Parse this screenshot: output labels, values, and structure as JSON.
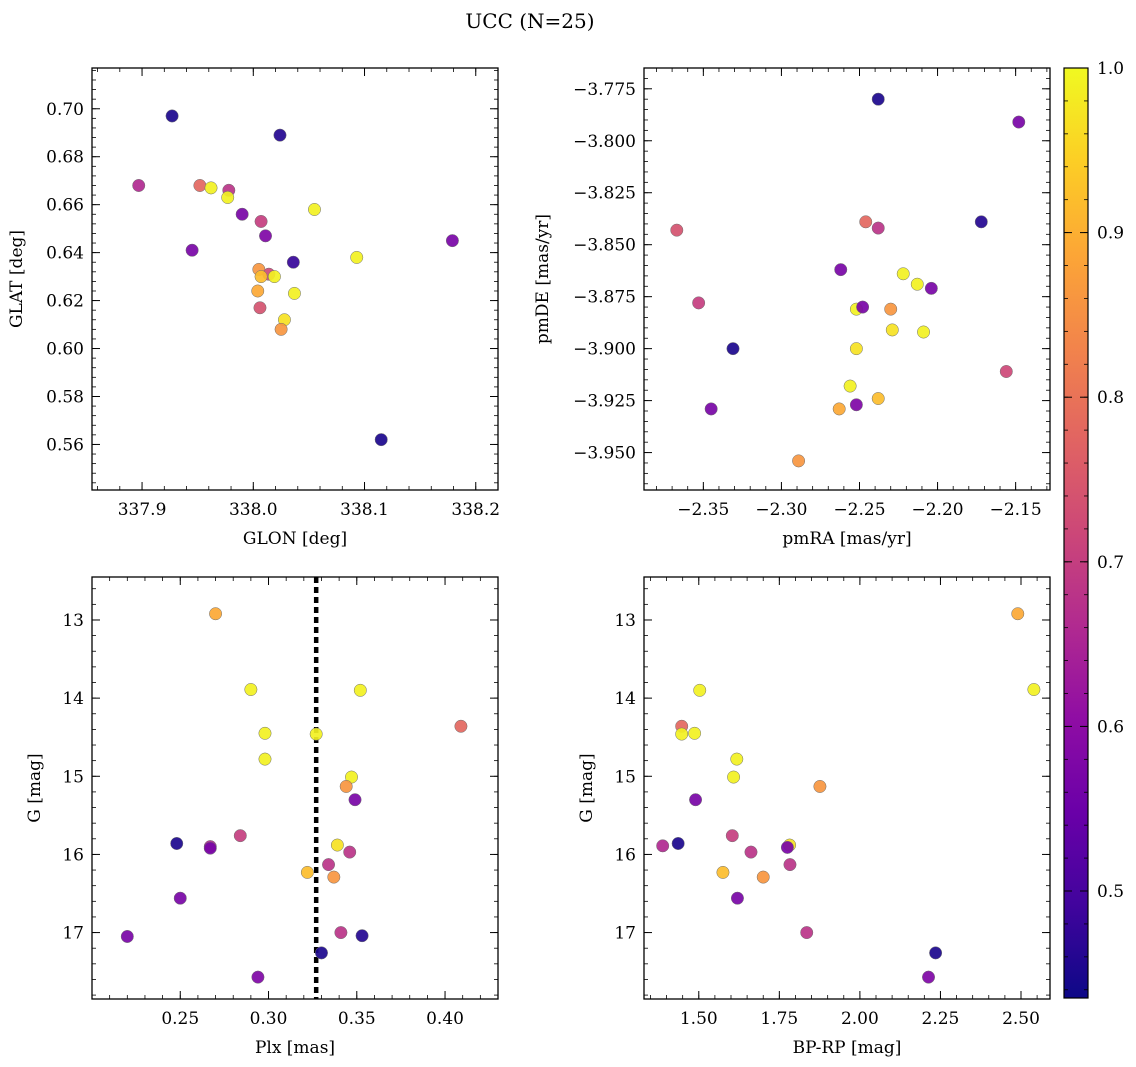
{
  "figure": {
    "title": "UCC (N=25)"
  },
  "colorbar": {
    "range": [
      0.435,
      1.0
    ],
    "ticks": [
      0.5,
      0.6,
      0.7,
      0.8,
      0.9,
      1.0
    ],
    "tick_labels": [
      "0.5",
      "0.6",
      "0.7",
      "0.8",
      "0.9",
      "1.0"
    ],
    "colormap": "plasma"
  },
  "chart_data": [
    {
      "type": "scatter",
      "xlabel": "GLON [deg]",
      "ylabel": "GLAT [deg]",
      "xlim": [
        337.855,
        338.22
      ],
      "ylim": [
        0.541,
        0.717
      ],
      "xticks": [
        337.9,
        338.0,
        338.1,
        338.2
      ],
      "xtick_labels": [
        "337.9",
        "338.0",
        "338.1",
        "338.2"
      ],
      "yticks": [
        0.56,
        0.58,
        0.6,
        0.62,
        0.64,
        0.66,
        0.68,
        0.7
      ],
      "ytick_labels": [
        "0.56",
        "0.58",
        "0.60",
        "0.62",
        "0.64",
        "0.66",
        "0.68",
        "0.70"
      ],
      "y_inverted": false,
      "points": [
        {
          "x": 337.927,
          "y": 0.697,
          "c": 0.45
        },
        {
          "x": 338.024,
          "y": 0.689,
          "c": 0.46
        },
        {
          "x": 337.897,
          "y": 0.668,
          "c": 0.66
        },
        {
          "x": 337.952,
          "y": 0.668,
          "c": 0.78
        },
        {
          "x": 337.962,
          "y": 0.667,
          "c": 0.99
        },
        {
          "x": 337.978,
          "y": 0.666,
          "c": 0.68
        },
        {
          "x": 337.977,
          "y": 0.663,
          "c": 0.99
        },
        {
          "x": 338.055,
          "y": 0.658,
          "c": 0.99
        },
        {
          "x": 337.99,
          "y": 0.656,
          "c": 0.57
        },
        {
          "x": 338.007,
          "y": 0.653,
          "c": 0.7
        },
        {
          "x": 338.011,
          "y": 0.647,
          "c": 0.58
        },
        {
          "x": 338.179,
          "y": 0.645,
          "c": 0.57
        },
        {
          "x": 337.945,
          "y": 0.641,
          "c": 0.57
        },
        {
          "x": 338.093,
          "y": 0.638,
          "c": 0.99
        },
        {
          "x": 338.036,
          "y": 0.636,
          "c": 0.48
        },
        {
          "x": 338.005,
          "y": 0.633,
          "c": 0.86
        },
        {
          "x": 338.014,
          "y": 0.631,
          "c": 0.72
        },
        {
          "x": 338.007,
          "y": 0.63,
          "c": 0.92
        },
        {
          "x": 338.019,
          "y": 0.63,
          "c": 0.99
        },
        {
          "x": 338.037,
          "y": 0.623,
          "c": 0.99
        },
        {
          "x": 338.004,
          "y": 0.624,
          "c": 0.89
        },
        {
          "x": 338.006,
          "y": 0.617,
          "c": 0.74
        },
        {
          "x": 338.028,
          "y": 0.612,
          "c": 0.97
        },
        {
          "x": 338.025,
          "y": 0.608,
          "c": 0.86
        },
        {
          "x": 338.115,
          "y": 0.562,
          "c": 0.45
        }
      ]
    },
    {
      "type": "scatter",
      "xlabel": "pmRA [mas/yr]",
      "ylabel": "pmDE [mas/yr]",
      "xlim": [
        -2.388,
        -2.128
      ],
      "ylim": [
        -3.968,
        -3.765
      ],
      "xticks": [
        -2.35,
        -2.3,
        -2.25,
        -2.2,
        -2.15
      ],
      "xtick_labels": [
        "−2.35",
        "−2.30",
        "−2.25",
        "−2.20",
        "−2.15"
      ],
      "yticks": [
        -3.95,
        -3.925,
        -3.9,
        -3.875,
        -3.85,
        -3.825,
        -3.8,
        -3.775
      ],
      "ytick_labels": [
        "−3.950",
        "−3.925",
        "−3.900",
        "−3.875",
        "−3.850",
        "−3.825",
        "−3.800",
        "−3.775"
      ],
      "y_inverted": false,
      "points": [
        {
          "x": -2.238,
          "y": -3.78,
          "c": 0.45
        },
        {
          "x": -2.148,
          "y": -3.791,
          "c": 0.57
        },
        {
          "x": -2.367,
          "y": -3.843,
          "c": 0.74
        },
        {
          "x": -2.246,
          "y": -3.839,
          "c": 0.78
        },
        {
          "x": -2.238,
          "y": -3.842,
          "c": 0.68
        },
        {
          "x": -2.172,
          "y": -3.839,
          "c": 0.46
        },
        {
          "x": -2.262,
          "y": -3.862,
          "c": 0.57
        },
        {
          "x": -2.222,
          "y": -3.864,
          "c": 0.99
        },
        {
          "x": -2.213,
          "y": -3.869,
          "c": 0.99
        },
        {
          "x": -2.204,
          "y": -3.871,
          "c": 0.57
        },
        {
          "x": -2.353,
          "y": -3.878,
          "c": 0.7
        },
        {
          "x": -2.252,
          "y": -3.881,
          "c": 0.99
        },
        {
          "x": -2.248,
          "y": -3.88,
          "c": 0.57
        },
        {
          "x": -2.23,
          "y": -3.881,
          "c": 0.86
        },
        {
          "x": -2.229,
          "y": -3.891,
          "c": 0.97
        },
        {
          "x": -2.209,
          "y": -3.892,
          "c": 0.99
        },
        {
          "x": -2.331,
          "y": -3.9,
          "c": 0.45
        },
        {
          "x": -2.252,
          "y": -3.9,
          "c": 0.97
        },
        {
          "x": -2.156,
          "y": -3.911,
          "c": 0.72
        },
        {
          "x": -2.256,
          "y": -3.918,
          "c": 0.99
        },
        {
          "x": -2.238,
          "y": -3.924,
          "c": 0.92
        },
        {
          "x": -2.252,
          "y": -3.927,
          "c": 0.58
        },
        {
          "x": -2.263,
          "y": -3.929,
          "c": 0.89
        },
        {
          "x": -2.345,
          "y": -3.929,
          "c": 0.57
        },
        {
          "x": -2.289,
          "y": -3.954,
          "c": 0.86
        }
      ]
    },
    {
      "type": "scatter",
      "xlabel": "Plx [mas]",
      "ylabel": "G [mag]",
      "xlim": [
        0.2,
        0.43
      ],
      "ylim": [
        12.45,
        17.85
      ],
      "xticks": [
        0.25,
        0.3,
        0.35,
        0.4
      ],
      "xtick_labels": [
        "0.25",
        "0.30",
        "0.35",
        "0.40"
      ],
      "yticks": [
        13,
        14,
        15,
        16,
        17
      ],
      "ytick_labels": [
        "13",
        "14",
        "15",
        "16",
        "17"
      ],
      "y_inverted": true,
      "vline": 0.327,
      "points": [
        {
          "x": 0.27,
          "y": 12.92,
          "c": 0.89
        },
        {
          "x": 0.29,
          "y": 13.89,
          "c": 0.99
        },
        {
          "x": 0.352,
          "y": 13.9,
          "c": 0.99
        },
        {
          "x": 0.409,
          "y": 14.36,
          "c": 0.78
        },
        {
          "x": 0.298,
          "y": 14.45,
          "c": 0.99
        },
        {
          "x": 0.327,
          "y": 14.46,
          "c": 0.99
        },
        {
          "x": 0.298,
          "y": 14.78,
          "c": 0.99
        },
        {
          "x": 0.347,
          "y": 15.01,
          "c": 0.99
        },
        {
          "x": 0.344,
          "y": 15.13,
          "c": 0.86
        },
        {
          "x": 0.349,
          "y": 15.3,
          "c": 0.57
        },
        {
          "x": 0.284,
          "y": 15.76,
          "c": 0.7
        },
        {
          "x": 0.248,
          "y": 15.86,
          "c": 0.45
        },
        {
          "x": 0.339,
          "y": 15.88,
          "c": 0.97
        },
        {
          "x": 0.267,
          "y": 15.9,
          "c": 0.66
        },
        {
          "x": 0.267,
          "y": 15.92,
          "c": 0.57
        },
        {
          "x": 0.346,
          "y": 15.97,
          "c": 0.68
        },
        {
          "x": 0.334,
          "y": 16.13,
          "c": 0.68
        },
        {
          "x": 0.322,
          "y": 16.23,
          "c": 0.92
        },
        {
          "x": 0.337,
          "y": 16.29,
          "c": 0.86
        },
        {
          "x": 0.25,
          "y": 16.56,
          "c": 0.57
        },
        {
          "x": 0.341,
          "y": 17.0,
          "c": 0.68
        },
        {
          "x": 0.22,
          "y": 17.05,
          "c": 0.57
        },
        {
          "x": 0.353,
          "y": 17.04,
          "c": 0.46
        },
        {
          "x": 0.33,
          "y": 17.26,
          "c": 0.45
        },
        {
          "x": 0.294,
          "y": 17.57,
          "c": 0.58
        }
      ]
    },
    {
      "type": "scatter",
      "xlabel": "BP-RP [mag]",
      "ylabel": "G [mag]",
      "xlim": [
        1.33,
        2.59
      ],
      "ylim": [
        12.45,
        17.85
      ],
      "xticks": [
        1.5,
        1.75,
        2.0,
        2.25,
        2.5
      ],
      "xtick_labels": [
        "1.50",
        "1.75",
        "2.00",
        "2.25",
        "2.50"
      ],
      "yticks": [
        13,
        14,
        15,
        16,
        17
      ],
      "ytick_labels": [
        "13",
        "14",
        "15",
        "16",
        "17"
      ],
      "y_inverted": true,
      "points": [
        {
          "x": 2.49,
          "y": 12.92,
          "c": 0.89
        },
        {
          "x": 1.503,
          "y": 13.9,
          "c": 0.99
        },
        {
          "x": 2.54,
          "y": 13.89,
          "c": 0.99
        },
        {
          "x": 1.447,
          "y": 14.36,
          "c": 0.78
        },
        {
          "x": 1.447,
          "y": 14.46,
          "c": 0.99
        },
        {
          "x": 1.487,
          "y": 14.45,
          "c": 0.99
        },
        {
          "x": 1.618,
          "y": 14.78,
          "c": 0.99
        },
        {
          "x": 1.608,
          "y": 15.01,
          "c": 0.99
        },
        {
          "x": 1.876,
          "y": 15.13,
          "c": 0.86
        },
        {
          "x": 1.49,
          "y": 15.3,
          "c": 0.57
        },
        {
          "x": 1.604,
          "y": 15.76,
          "c": 0.7
        },
        {
          "x": 1.436,
          "y": 15.86,
          "c": 0.45
        },
        {
          "x": 1.388,
          "y": 15.89,
          "c": 0.66
        },
        {
          "x": 1.782,
          "y": 15.88,
          "c": 0.97
        },
        {
          "x": 1.775,
          "y": 15.91,
          "c": 0.57
        },
        {
          "x": 1.662,
          "y": 15.97,
          "c": 0.68
        },
        {
          "x": 1.783,
          "y": 16.13,
          "c": 0.68
        },
        {
          "x": 1.575,
          "y": 16.23,
          "c": 0.92
        },
        {
          "x": 1.7,
          "y": 16.29,
          "c": 0.86
        },
        {
          "x": 1.62,
          "y": 16.56,
          "c": 0.57
        },
        {
          "x": 1.835,
          "y": 17.0,
          "c": 0.68
        },
        {
          "x": 2.235,
          "y": 17.26,
          "c": 0.45
        },
        {
          "x": 2.213,
          "y": 17.57,
          "c": 0.58
        }
      ]
    }
  ]
}
